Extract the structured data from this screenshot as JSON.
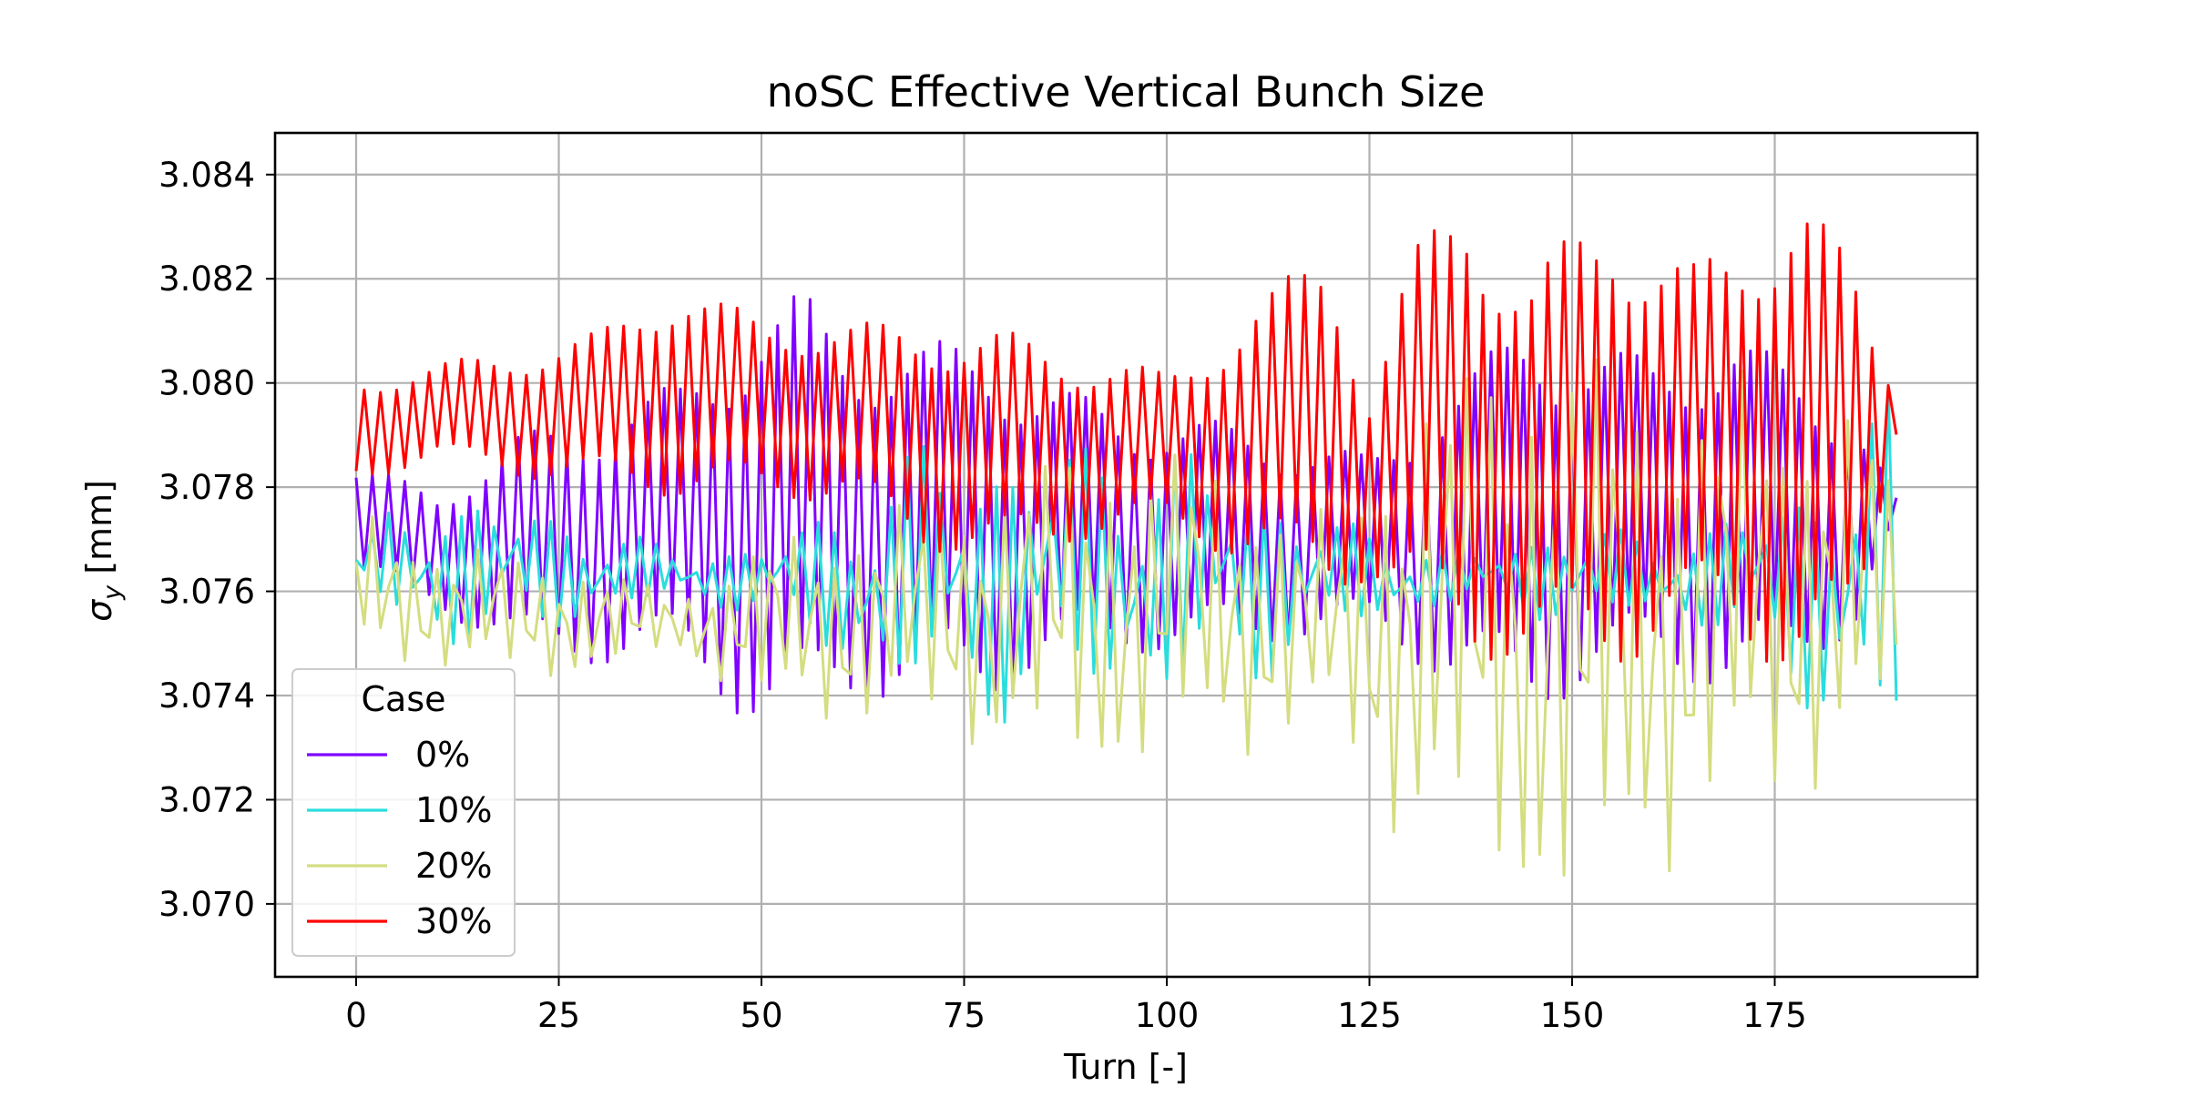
{
  "chart_data": {
    "type": "line",
    "title": "noSC Effective Vertical Bunch Size",
    "xlabel": "Turn [-]",
    "ylabel_main": "σ",
    "ylabel_sub": "y",
    "ylabel_unit": " [mm]",
    "xlim": [
      -10,
      200
    ],
    "ylim": [
      3.0686,
      3.0848
    ],
    "xticks": [
      0,
      25,
      50,
      75,
      100,
      125,
      150,
      175
    ],
    "yticks": [
      3.07,
      3.072,
      3.074,
      3.076,
      3.078,
      3.08,
      3.082,
      3.084
    ],
    "ytick_labels": [
      "3.070",
      "3.072",
      "3.074",
      "3.076",
      "3.078",
      "3.080",
      "3.082",
      "3.084"
    ],
    "grid": true,
    "legend": {
      "title": "Case",
      "placement": "lower-left"
    },
    "n_turns": 191,
    "series": [
      {
        "name": "0%",
        "color": "#8000ff",
        "envelope": [
          [
            0,
            3.0784,
            3.0762
          ],
          [
            10,
            3.078,
            3.0757
          ],
          [
            20,
            3.079,
            3.0747
          ],
          [
            30,
            3.0795,
            3.0746
          ],
          [
            40,
            3.08,
            3.0745
          ],
          [
            50,
            3.0815,
            3.0733
          ],
          [
            55,
            3.0818,
            3.0732
          ],
          [
            60,
            3.081,
            3.0738
          ],
          [
            70,
            3.0808,
            3.074
          ],
          [
            78,
            3.0808,
            3.0739
          ],
          [
            85,
            3.08,
            3.0745
          ],
          [
            95,
            3.0795,
            3.0748
          ],
          [
            105,
            3.0793,
            3.0749
          ],
          [
            115,
            3.079,
            3.075
          ],
          [
            125,
            3.0786,
            3.0752
          ],
          [
            135,
            3.08,
            3.0742
          ],
          [
            145,
            3.0812,
            3.0737
          ],
          [
            150,
            3.0808,
            3.074
          ],
          [
            160,
            3.0805,
            3.0745
          ],
          [
            170,
            3.081,
            3.074
          ],
          [
            180,
            3.08,
            3.0747
          ],
          [
            185,
            3.0795,
            3.0753
          ],
          [
            190,
            3.0778,
            3.0774
          ]
        ],
        "period": 2.0,
        "phase": 0.0
      },
      {
        "name": "10%",
        "color": "#2adddd",
        "envelope": [
          [
            0,
            3.0766,
            3.0766
          ],
          [
            5,
            3.0779,
            3.075
          ],
          [
            15,
            3.078,
            3.0748
          ],
          [
            25,
            3.0776,
            3.0752
          ],
          [
            40,
            3.0768,
            3.0758
          ],
          [
            50,
            3.077,
            3.0755
          ],
          [
            60,
            3.0778,
            3.0745
          ],
          [
            70,
            3.079,
            3.0735
          ],
          [
            80,
            3.0792,
            3.0734
          ],
          [
            90,
            3.079,
            3.0738
          ],
          [
            100,
            3.079,
            3.0736
          ],
          [
            110,
            3.0786,
            3.074
          ],
          [
            120,
            3.0775,
            3.075
          ],
          [
            130,
            3.077,
            3.0755
          ],
          [
            140,
            3.0768,
            3.0758
          ],
          [
            150,
            3.0775,
            3.0752
          ],
          [
            160,
            3.077,
            3.0755
          ],
          [
            170,
            3.0776,
            3.075
          ],
          [
            180,
            3.0785,
            3.0735
          ],
          [
            188,
            3.0804,
            3.0724
          ],
          [
            190,
            3.0795,
            3.0725
          ]
        ],
        "period": 2.2,
        "phase": 0.7
      },
      {
        "name": "20%",
        "color": "#d4dd80",
        "envelope": [
          [
            0,
            3.0776,
            3.0745
          ],
          [
            10,
            3.077,
            3.0745
          ],
          [
            20,
            3.0768,
            3.0742
          ],
          [
            30,
            3.0765,
            3.0744
          ],
          [
            40,
            3.076,
            3.0748
          ],
          [
            50,
            3.077,
            3.0736
          ],
          [
            60,
            3.0775,
            3.0734
          ],
          [
            70,
            3.0778,
            3.0732
          ],
          [
            80,
            3.0785,
            3.0728
          ],
          [
            90,
            3.079,
            3.0722
          ],
          [
            100,
            3.079,
            3.0726
          ],
          [
            110,
            3.0783,
            3.0728
          ],
          [
            120,
            3.0775,
            3.073
          ],
          [
            130,
            3.08,
            3.0708
          ],
          [
            140,
            3.081,
            3.07
          ],
          [
            148,
            3.0815,
            3.0693
          ],
          [
            152,
            3.081,
            3.0692
          ],
          [
            160,
            3.08,
            3.0704
          ],
          [
            170,
            3.0803,
            3.0712
          ],
          [
            180,
            3.08,
            3.072
          ],
          [
            188,
            3.0795,
            3.073
          ],
          [
            190,
            3.0776,
            3.073
          ]
        ],
        "period": 2.6,
        "phase": 1.4
      },
      {
        "name": "30%",
        "color": "#ff0000",
        "envelope": [
          [
            0,
            3.0801,
            3.0781
          ],
          [
            10,
            3.0804,
            3.0785
          ],
          [
            20,
            3.0806,
            3.0782
          ],
          [
            30,
            3.081,
            3.078
          ],
          [
            40,
            3.082,
            3.0778
          ],
          [
            50,
            3.0812,
            3.0778
          ],
          [
            60,
            3.0812,
            3.0777
          ],
          [
            70,
            3.0811,
            3.0768
          ],
          [
            80,
            3.081,
            3.0766
          ],
          [
            90,
            3.0806,
            3.077
          ],
          [
            100,
            3.0802,
            3.0772
          ],
          [
            110,
            3.0815,
            3.0765
          ],
          [
            120,
            3.0826,
            3.076
          ],
          [
            125,
            3.08,
            3.0762
          ],
          [
            130,
            3.0825,
            3.0755
          ],
          [
            137,
            3.0837,
            3.0748
          ],
          [
            145,
            3.0822,
            3.0745
          ],
          [
            155,
            3.0835,
            3.0745
          ],
          [
            165,
            3.0823,
            3.0752
          ],
          [
            170,
            3.0827,
            3.075
          ],
          [
            178,
            3.0841,
            3.0743
          ],
          [
            185,
            3.082,
            3.0748
          ],
          [
            190,
            3.0799,
            3.079
          ]
        ],
        "period": 2.0,
        "phase": 3.1
      }
    ]
  }
}
